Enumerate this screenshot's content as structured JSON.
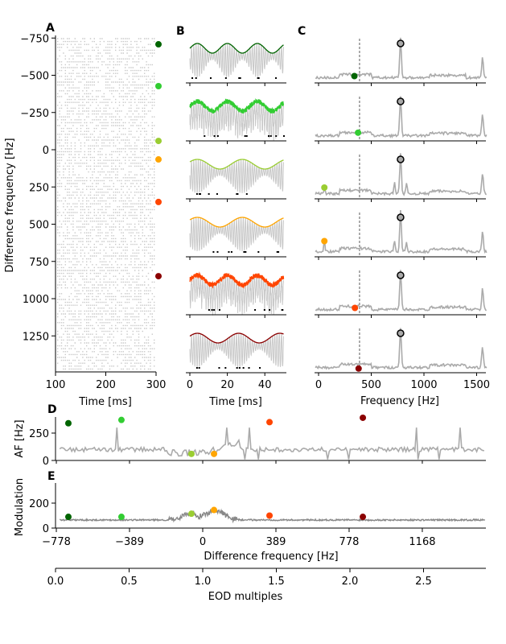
{
  "panel_labels": {
    "a": "A",
    "b": "B",
    "c": "C",
    "d": "D",
    "e": "E"
  },
  "colors": [
    "#006400",
    "#32cd32",
    "#9acd32",
    "#ffa500",
    "#ff4500",
    "#8b0000"
  ],
  "chart_data": [
    {
      "id": "A",
      "type": "scatter",
      "xlabel": "Time [ms]",
      "ylabel": "Difference frequency [Hz]",
      "xticks": [
        "100",
        "200",
        "300"
      ],
      "xlim": [
        100,
        300
      ],
      "yticks": [
        "−750",
        "−500",
        "−250",
        "0",
        "250",
        "500",
        "750",
        "1000",
        "1250"
      ],
      "ylim": [
        -750,
        1500
      ],
      "marker_df": [
        -708,
        -427,
        -59,
        65,
        351,
        849
      ]
    },
    {
      "id": "B",
      "type": "line",
      "xlabel": "Time [ms]",
      "xticks": [
        "0",
        "20",
        "40"
      ],
      "xlim": [
        0,
        50
      ],
      "beat_periods_ms": [
        16,
        16,
        24,
        24,
        16,
        22
      ]
    },
    {
      "id": "C",
      "type": "line",
      "xlabel": "Frequency [Hz]",
      "xticks": [
        "0",
        "500",
        "1000",
        "1500"
      ],
      "xlim": [
        -40,
        1600
      ],
      "eod_freq": 778,
      "dashed_line": 389,
      "harmonic": 1556,
      "marker_freq": [
        340,
        375,
        55,
        55,
        345,
        380
      ],
      "marker_rel_height": [
        0.1,
        0.13,
        0.2,
        0.3,
        0.1,
        0.04
      ]
    },
    {
      "id": "D",
      "type": "line",
      "ylabel": "AF [Hz]",
      "yticks": [
        "0",
        "250"
      ],
      "ylim": [
        0,
        400
      ],
      "marker_df": [
        -714,
        -432,
        -60,
        60,
        355,
        851
      ],
      "marker_af": [
        340,
        370,
        60,
        60,
        350,
        390
      ],
      "baseline": 100
    },
    {
      "id": "E",
      "type": "line",
      "ylabel": "Modulation",
      "yticks": [
        "0",
        "200"
      ],
      "ylim": [
        0,
        350
      ],
      "xlabel": "Difference frequency [Hz]",
      "xticks": [
        "−778",
        "−389",
        "0",
        "389",
        "778",
        "1168"
      ],
      "xlim": [
        -778,
        1500
      ],
      "marker_df": [
        -714,
        -432,
        -60,
        60,
        355,
        851
      ],
      "marker_mod": [
        90,
        90,
        115,
        145,
        100,
        90
      ],
      "baseline": 65
    },
    {
      "id": "EOD",
      "type": "axis",
      "xlabel": "EOD multiples",
      "xticks": [
        "0.0",
        "0.5",
        "1.0",
        "1.5",
        "2.0",
        "2.5"
      ],
      "xlim": [
        0,
        2.92
      ]
    }
  ]
}
